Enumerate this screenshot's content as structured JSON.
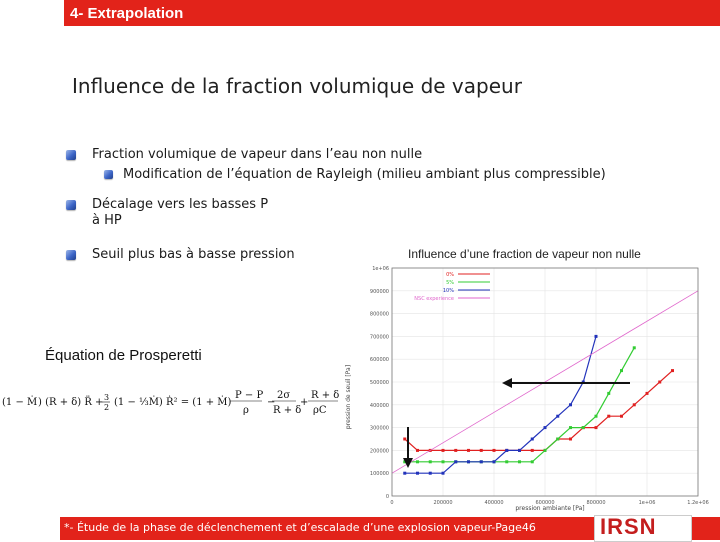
{
  "header": {
    "title": "4- Extrapolation"
  },
  "slide": {
    "title": "Influence de la fraction volumique de vapeur"
  },
  "bullets": [
    {
      "text": "Fraction volumique de vapeur dans l’eau non nulle"
    },
    {
      "text": "Modification de l’équation de Rayleigh (milieu ambiant plus compressible)"
    },
    {
      "text": "Décalage vers les basses P"
    },
    {
      "text": "à HP"
    },
    {
      "text": "Seuil plus bas à basse pression"
    }
  ],
  "chart": {
    "caption": "Influence d’une fraction de vapeur non nulle"
  },
  "equation": {
    "title": "Équation de Prosperetti"
  },
  "footer": {
    "text": "*- Étude de la phase de déclenchement et d’escalade d’une explosion vapeur-Page46"
  },
  "logo": {
    "text": "IRSN"
  },
  "colors": {
    "accent": "#e2231a",
    "bullet": "#3d66c8"
  },
  "chart_data": {
    "type": "line",
    "xlabel": "pression ambiante [Pa]",
    "ylabel": "pression de seuil [Pa]",
    "xlim": [
      0,
      1200000
    ],
    "ylim": [
      0,
      1000000
    ],
    "x_ticks": [
      "0",
      "200000",
      "400000",
      "600000",
      "800000",
      "1e+06",
      "1.2e+06"
    ],
    "y_ticks": [
      "0",
      "100000",
      "200000",
      "300000",
      "400000",
      "500000",
      "600000",
      "700000",
      "800000",
      "900000",
      "1e+06"
    ],
    "series": [
      {
        "name": "0%",
        "color": "#e02020",
        "x": [
          50000,
          100000,
          150000,
          200000,
          250000,
          300000,
          350000,
          400000,
          450000,
          500000,
          550000,
          600000,
          650000,
          700000,
          750000,
          800000,
          850000,
          900000,
          950000,
          1000000,
          1050000,
          1100000
        ],
        "y": [
          250000,
          200000,
          200000,
          200000,
          200000,
          200000,
          200000,
          200000,
          200000,
          200000,
          200000,
          200000,
          250000,
          250000,
          300000,
          300000,
          350000,
          350000,
          400000,
          450000,
          500000,
          550000
        ]
      },
      {
        "name": "5%",
        "color": "#33cc33",
        "x": [
          50000,
          100000,
          150000,
          200000,
          250000,
          300000,
          350000,
          400000,
          450000,
          500000,
          550000,
          600000,
          650000,
          700000,
          750000,
          800000,
          850000,
          900000,
          950000
        ],
        "y": [
          150000,
          150000,
          150000,
          150000,
          150000,
          150000,
          150000,
          150000,
          150000,
          150000,
          150000,
          200000,
          250000,
          300000,
          300000,
          350000,
          450000,
          550000,
          650000
        ]
      },
      {
        "name": "10%",
        "color": "#2233bb",
        "x": [
          50000,
          100000,
          150000,
          200000,
          250000,
          300000,
          350000,
          400000,
          450000,
          500000,
          550000,
          600000,
          650000,
          700000,
          750000,
          800000
        ],
        "y": [
          100000,
          100000,
          100000,
          100000,
          150000,
          150000,
          150000,
          150000,
          200000,
          200000,
          250000,
          300000,
          350000,
          400000,
          500000,
          700000
        ]
      },
      {
        "name": "NSC experience",
        "color": "#e066cc",
        "x": [
          0,
          1200000
        ],
        "y": [
          100000,
          900000
        ]
      }
    ]
  }
}
